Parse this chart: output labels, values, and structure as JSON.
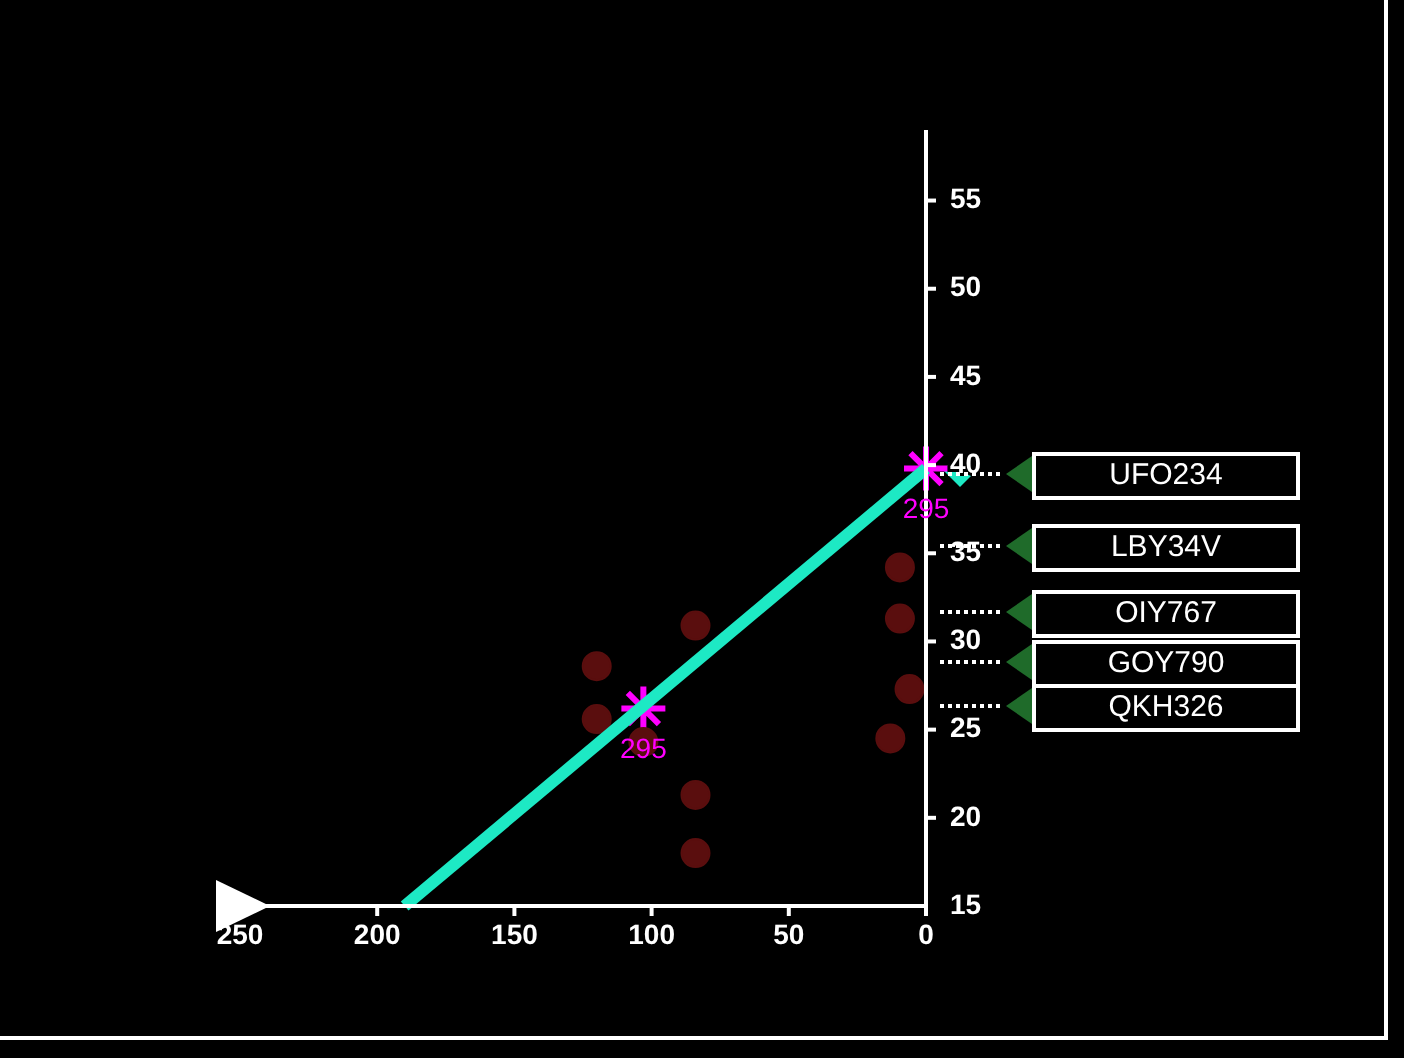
{
  "chart_data": {
    "type": "scatter",
    "xlim": [
      250,
      0
    ],
    "ylim": [
      15,
      59
    ],
    "xticks": [
      250,
      200,
      150,
      100,
      50,
      0
    ],
    "yticks": [
      15,
      20,
      25,
      30,
      35,
      40,
      45,
      50,
      55
    ],
    "legend": false,
    "series": [
      {
        "type": "line",
        "color": "#1de9c4",
        "x": [
          190,
          0
        ],
        "values": [
          15,
          39.8
        ]
      },
      {
        "type": "scatter",
        "color": "#5a0e0e",
        "marker": "circle",
        "x": [
          120,
          120,
          84,
          84,
          84,
          103,
          9.5,
          9.5,
          6,
          13
        ],
        "values": [
          28.6,
          25.6,
          30.9,
          21.3,
          18.0,
          24.3,
          34.2,
          31.3,
          27.3,
          24.5
        ]
      },
      {
        "type": "scatter",
        "color": "#ff00ff",
        "marker": "cross",
        "x": [
          103,
          0
        ],
        "values": [
          26.2,
          39.8
        ]
      }
    ],
    "annotations": [
      {
        "text": "295",
        "x": 103,
        "y": 26.2
      },
      {
        "text": "295",
        "x": 0,
        "y": 39.8
      },
      "UFO234",
      "LBY34V",
      "OIY767",
      "GOY790",
      "QKH326"
    ]
  }
}
